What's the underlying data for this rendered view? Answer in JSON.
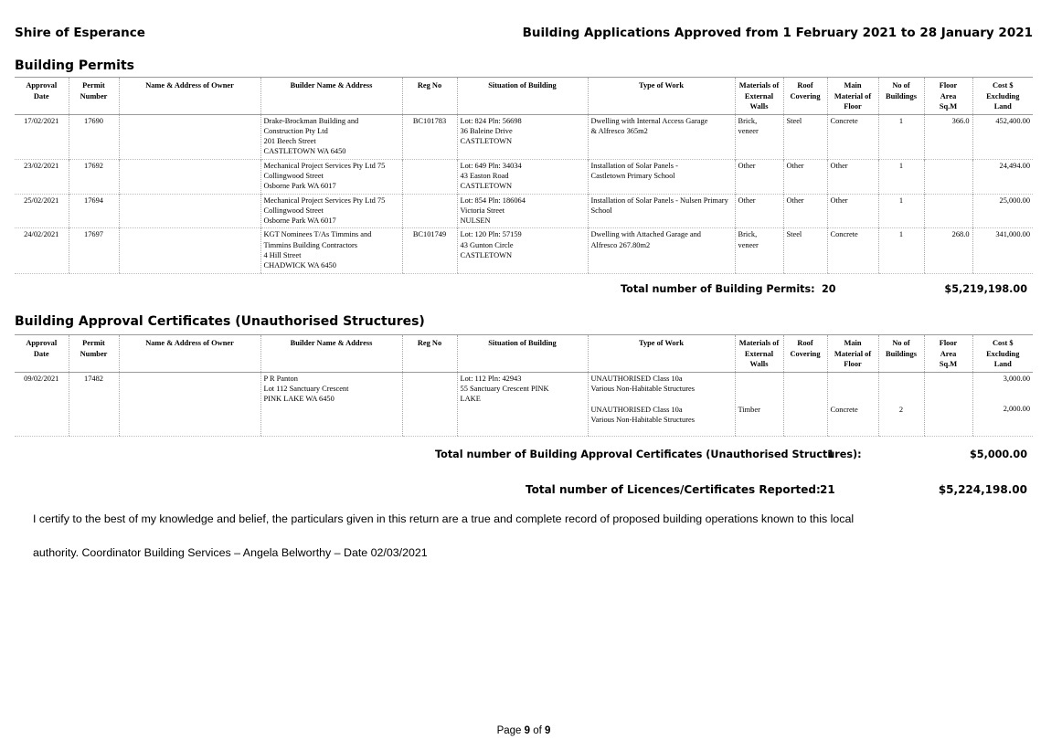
{
  "header": {
    "org": "Shire of Esperance",
    "title": "Building Applications Approved from 1 February 2021 to 28 January 2021"
  },
  "columns": [
    {
      "l1": "Approval",
      "l2": "Date",
      "l3": "",
      "l4": ""
    },
    {
      "l1": "Permit",
      "l2": "Number",
      "l3": "",
      "l4": ""
    },
    {
      "l1": "Name & Address of Owner",
      "l2": "",
      "l3": "",
      "l4": ""
    },
    {
      "l1": "Builder Name & Address",
      "l2": "",
      "l3": "",
      "l4": ""
    },
    {
      "l1": "Reg No",
      "l2": "",
      "l3": "",
      "l4": ""
    },
    {
      "l1": "Situation of Building",
      "l2": "",
      "l3": "",
      "l4": ""
    },
    {
      "l1": "Type of Work",
      "l2": "",
      "l3": "",
      "l4": ""
    },
    {
      "l1": "Materials of",
      "l2": "External",
      "l3": "Walls",
      "l4": ""
    },
    {
      "l1": "Roof",
      "l2": "Covering",
      "l3": "",
      "l4": ""
    },
    {
      "l1": "Main",
      "l2": "Material of",
      "l3": "Floor",
      "l4": ""
    },
    {
      "l1": "No of",
      "l2": "Buildings",
      "l3": "",
      "l4": ""
    },
    {
      "l1": "Floor",
      "l2": "Area",
      "l3": "Sq.M",
      "l4": ""
    },
    {
      "l1": "Cost $",
      "l2": "Excluding",
      "l3": "Land",
      "l4": ""
    }
  ],
  "building_permits": {
    "title": "Building Permits",
    "rows": [
      {
        "date": "17/02/2021",
        "permit": "17690",
        "owner": "",
        "builder": [
          "Drake-Brockman Building and",
          "Construction Pty Ltd",
          "201 Beech Street",
          "CASTLETOWN  WA 6450"
        ],
        "reg": "BC101783",
        "situation": [
          "Lot: 824 Pln: 56698",
          "36 Baleine Drive",
          "CASTLETOWN"
        ],
        "work": [
          "Dwelling with Internal Access Garage",
          "& Alfresco 365m2"
        ],
        "walls": [
          "Brick,",
          "veneer"
        ],
        "roof": "Steel",
        "floor": "Concrete",
        "buildings": "1",
        "area": "366.0",
        "cost": "452,400.00"
      },
      {
        "date": "23/02/2021",
        "permit": "17692",
        "owner": "",
        "builder": [
          "Mechanical Project Services Pty Ltd 75",
          "Collingwood Street",
          "Osborne Park  WA 6017"
        ],
        "reg": "",
        "situation": [
          "Lot: 649 Pln: 34034",
          "43 Easton Road",
          "CASTLETOWN"
        ],
        "work": [
          "Installation of Solar Panels -",
          "Castletown Primary School"
        ],
        "walls": [
          "Other"
        ],
        "roof": "Other",
        "floor": "Other",
        "buildings": "1",
        "area": "",
        "cost": "24,494.00"
      },
      {
        "date": "25/02/2021",
        "permit": "17694",
        "owner": "",
        "builder": [
          "Mechanical Project Services Pty Ltd 75",
          "Collingwood Street",
          "Osborne Park  WA 6017"
        ],
        "reg": "",
        "situation": [
          "Lot: 854 Pln: 186064",
          "Victoria Street",
          "NULSEN"
        ],
        "work": [
          "Installation of Solar Panels - Nulsen Primary",
          "School"
        ],
        "walls": [
          "Other"
        ],
        "roof": "Other",
        "floor": "Other",
        "buildings": "1",
        "area": "",
        "cost": "25,000.00"
      },
      {
        "date": "24/02/2021",
        "permit": "17697",
        "owner": "",
        "builder": [
          "KGT Nominees T/As Timmins and",
          "Timmins Building Contractors",
          "4 Hill Street",
          "CHADWICK  WA 6450"
        ],
        "reg": "BC101749",
        "situation": [
          "Lot: 120 Pln: 57159",
          "43 Gunton Circle",
          "CASTLETOWN"
        ],
        "work": [
          "Dwelling with Attached Garage and",
          "Alfresco 267.80m2"
        ],
        "walls": [
          "Brick,",
          "veneer"
        ],
        "roof": "Steel",
        "floor": "Concrete",
        "buildings": "1",
        "area": "268.0",
        "cost": "341,000.00"
      }
    ],
    "total_label": "Total number of Building Permits:",
    "total_count": "20",
    "total_value": "$5,219,198.00"
  },
  "approval_certificates": {
    "title": "Building Approval Certificates (Unauthorised Structures)",
    "row": {
      "date": "09/02/2021",
      "permit": "17482",
      "owner": "",
      "builder": [
        "P R Panton",
        "Lot 112 Sanctuary Crescent",
        "PINK LAKE  WA 6450"
      ],
      "reg": "",
      "situation": [
        "Lot: 112 Pln: 42943",
        "55 Sanctuary Crescent PINK",
        "LAKE"
      ],
      "work1": [
        "UNAUTHORISED Class 10a",
        "Various Non-Habitable Structures"
      ],
      "cost1": "3,000.00",
      "work2": [
        "UNAUTHORISED Class 10a",
        "Various Non-Habitable Structures"
      ],
      "walls2": "Timber",
      "floor2": "Concrete",
      "buildings2": "2",
      "cost2": "2,000.00"
    },
    "total_label": "Total number of Building Approval Certificates (Unauthorised Structures):",
    "total_count": "1",
    "total_value": "$5,000.00"
  },
  "grand_total": {
    "label": "Total number of Licences/Certificates Reported:",
    "count": "21",
    "value": "$5,224,198.00"
  },
  "certification": {
    "line1": "I certify to the best of my knowledge and belief, the particulars given in this return are a true and complete record of proposed building operations known to this local",
    "line2": "authority. Coordinator Building Services – Angela Belworthy – Date 02/03/2021"
  },
  "footer": {
    "page_word": "Page",
    "page": "9",
    "of_word": "of",
    "total": "9"
  }
}
